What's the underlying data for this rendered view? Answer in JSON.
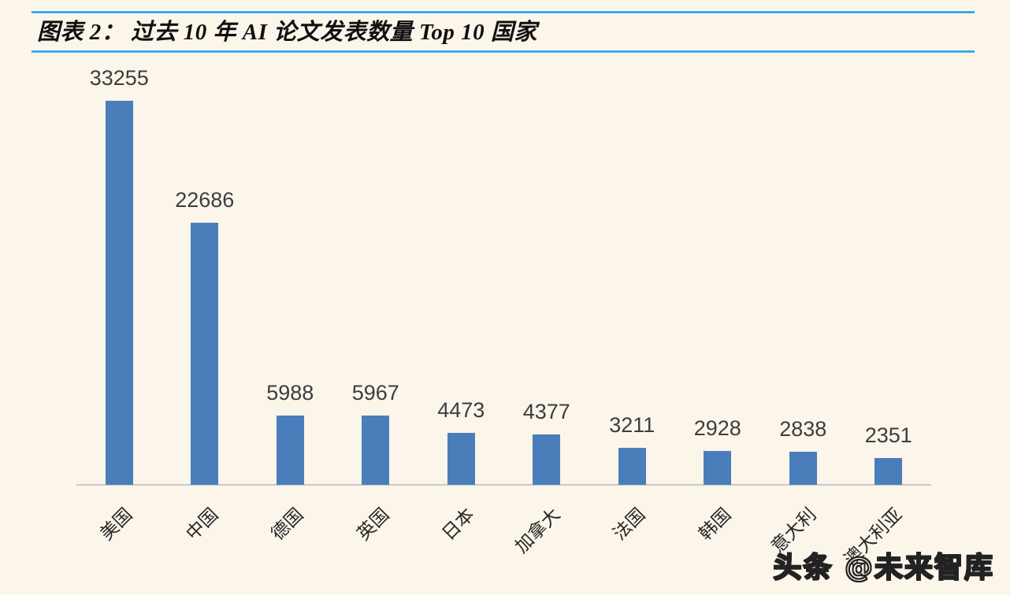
{
  "header": {
    "title": "图表 2：  过去 10 年 AI 论文发表数量 Top 10 国家"
  },
  "chart_data": {
    "type": "bar",
    "title": "图表 2：  过去 10 年 AI 论文发表数量 Top 10 国家",
    "categories": [
      "美国",
      "中国",
      "德国",
      "英国",
      "日本",
      "加拿大",
      "法国",
      "韩国",
      "意大利",
      "澳大利亚"
    ],
    "values": [
      33255,
      22686,
      5988,
      5967,
      4473,
      4377,
      3211,
      2928,
      2838,
      2351
    ],
    "xlabel": "",
    "ylabel": "",
    "ylim": [
      0,
      33255
    ],
    "grid": false,
    "legend": null,
    "data_labels": true,
    "bar_color": "#4a7ebb",
    "accent_rule_color": "#3fa9dc",
    "axis_line_color": "#c9c9c9"
  },
  "watermark": {
    "text": "头条 @未来智库"
  }
}
